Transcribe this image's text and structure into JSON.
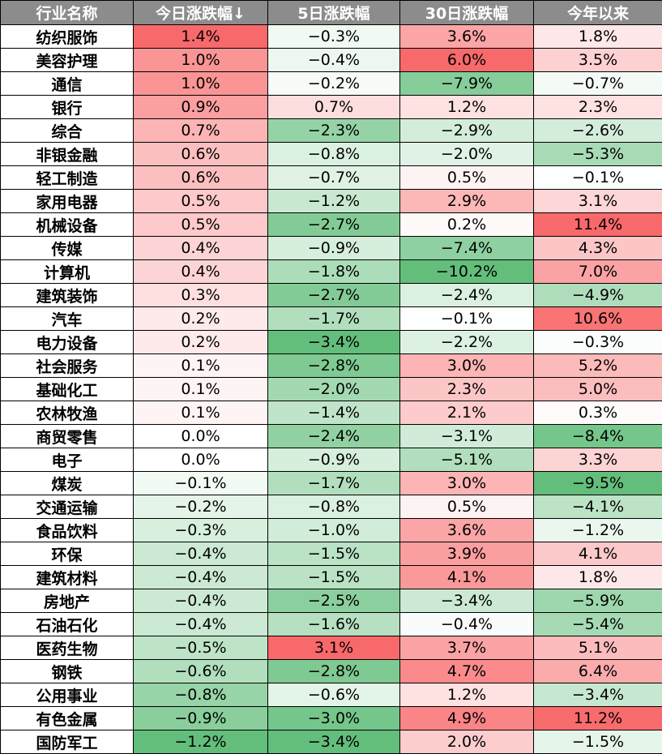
{
  "chart_data": {
    "type": "table",
    "columns": [
      "行业名称",
      "今日涨跌幅↓",
      "5日涨跌幅",
      "30日涨跌幅",
      "今年以来"
    ],
    "rows": [
      [
        "纺织服饰",
        "1.4%",
        "−0.3%",
        "3.6%",
        "1.8%"
      ],
      [
        "美容护理",
        "1.0%",
        "−0.4%",
        "6.0%",
        "3.5%"
      ],
      [
        "通信",
        "1.0%",
        "−0.2%",
        "−7.9%",
        "−0.7%"
      ],
      [
        "银行",
        "0.9%",
        "0.7%",
        "1.2%",
        "2.3%"
      ],
      [
        "综合",
        "0.7%",
        "−2.3%",
        "−2.9%",
        "−2.6%"
      ],
      [
        "非银金融",
        "0.6%",
        "−0.8%",
        "−2.0%",
        "−5.3%"
      ],
      [
        "轻工制造",
        "0.6%",
        "−0.7%",
        "0.5%",
        "−0.1%"
      ],
      [
        "家用电器",
        "0.5%",
        "−1.2%",
        "2.9%",
        "3.1%"
      ],
      [
        "机械设备",
        "0.5%",
        "−2.7%",
        "0.2%",
        "11.4%"
      ],
      [
        "传媒",
        "0.4%",
        "−0.9%",
        "−7.4%",
        "4.3%"
      ],
      [
        "计算机",
        "0.4%",
        "−1.8%",
        "−10.2%",
        "7.0%"
      ],
      [
        "建筑装饰",
        "0.3%",
        "−2.7%",
        "−2.4%",
        "−4.9%"
      ],
      [
        "汽车",
        "0.2%",
        "−1.7%",
        "−0.1%",
        "10.6%"
      ],
      [
        "电力设备",
        "0.2%",
        "−3.4%",
        "−2.2%",
        "−0.3%"
      ],
      [
        "社会服务",
        "0.1%",
        "−2.8%",
        "3.0%",
        "5.2%"
      ],
      [
        "基础化工",
        "0.1%",
        "−2.0%",
        "2.3%",
        "5.0%"
      ],
      [
        "农林牧渔",
        "0.1%",
        "−1.4%",
        "2.1%",
        "0.3%"
      ],
      [
        "商贸零售",
        "0.0%",
        "−2.4%",
        "−3.1%",
        "−8.4%"
      ],
      [
        "电子",
        "0.0%",
        "−0.9%",
        "−5.1%",
        "3.3%"
      ],
      [
        "煤炭",
        "−0.1%",
        "−1.7%",
        "3.0%",
        "−9.5%"
      ],
      [
        "交通运输",
        "−0.2%",
        "−0.8%",
        "0.5%",
        "−4.1%"
      ],
      [
        "食品饮料",
        "−0.3%",
        "−1.0%",
        "3.6%",
        "−1.2%"
      ],
      [
        "环保",
        "−0.4%",
        "−1.5%",
        "3.9%",
        "4.1%"
      ],
      [
        "建筑材料",
        "−0.4%",
        "−1.5%",
        "4.1%",
        "1.8%"
      ],
      [
        "房地产",
        "−0.4%",
        "−2.5%",
        "−3.4%",
        "−5.9%"
      ],
      [
        "石油石化",
        "−0.4%",
        "−1.6%",
        "−0.4%",
        "−5.4%"
      ],
      [
        "医药生物",
        "−0.5%",
        "3.1%",
        "3.7%",
        "5.1%"
      ],
      [
        "钢铁",
        "−0.6%",
        "−2.8%",
        "4.7%",
        "6.4%"
      ],
      [
        "公用事业",
        "−0.8%",
        "−0.6%",
        "1.2%",
        "−3.4%"
      ],
      [
        "有色金属",
        "−0.9%",
        "−3.0%",
        "4.9%",
        "11.2%"
      ],
      [
        "国防军工",
        "−1.2%",
        "−3.4%",
        "2.0%",
        "−1.5%"
      ]
    ],
    "colors": {
      "header_bg": "#8c8c8c",
      "positive_max": "#f8696b",
      "negative_max": "#63be7b",
      "neutral": "#ffffff"
    }
  }
}
